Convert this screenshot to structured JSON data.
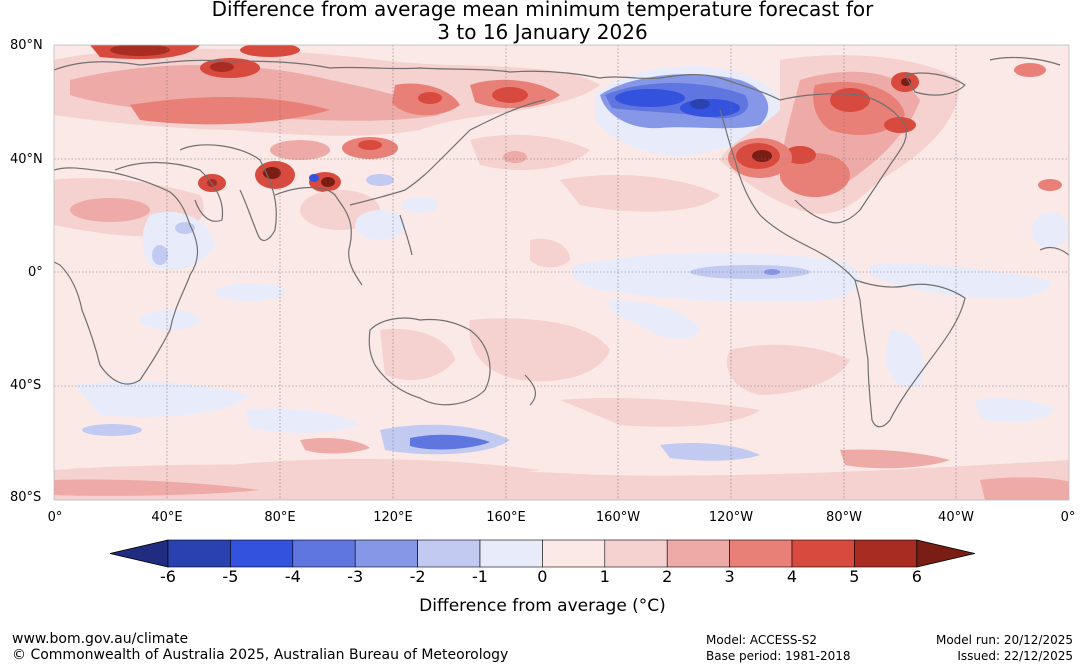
{
  "title_line1": "Difference from average mean minimum temperature forecast for",
  "title_line2": "3 to 16 January 2026",
  "lat_labels": [
    "80°N",
    "40°N",
    "0°",
    "40°S",
    "80°S"
  ],
  "lon_labels": [
    "0°",
    "40°E",
    "80°E",
    "120°E",
    "160°E",
    "160°W",
    "120°W",
    "80°W",
    "40°W",
    "0°"
  ],
  "colorbar": {
    "ticks": [
      "-6",
      "-5",
      "-4",
      "-3",
      "-2",
      "-1",
      "0",
      "1",
      "2",
      "3",
      "4",
      "5",
      "6"
    ],
    "colors": [
      "#1f2c80",
      "#2a41b0",
      "#3352dd",
      "#5f76e0",
      "#8797e8",
      "#c2caf2",
      "#e8ebfa",
      "#fbe9e7",
      "#f5d1cf",
      "#eeaaa6",
      "#e88078",
      "#d84a3e",
      "#a92c22",
      "#7a1d14"
    ],
    "label": "Difference from average (°C)"
  },
  "footer": {
    "url": "www.bom.gov.au/climate",
    "copyright": "© Commonwealth of Australia 2025, Australian Bureau of Meteorology",
    "model": "Model: ACCESS-S2",
    "base_period": "Base period: 1981-2018",
    "model_run": "Model run: 20/12/2025",
    "issued": "Issued: 22/12/2025"
  }
}
